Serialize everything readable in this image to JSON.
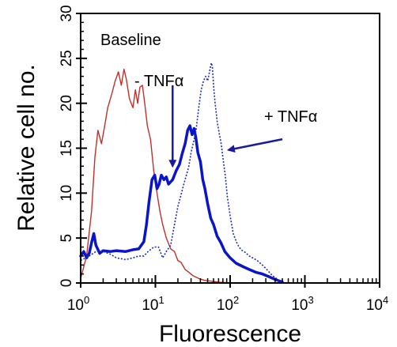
{
  "chart_data": {
    "type": "line",
    "xlabel": "Fluorescence",
    "ylabel": "Relative cell no.",
    "x_scale": "log",
    "xlim": [
      1,
      10000
    ],
    "ylim": [
      0,
      30
    ],
    "grid": false,
    "x_ticks": [
      {
        "value": 1,
        "base": "10",
        "exp": "0"
      },
      {
        "value": 10,
        "base": "10",
        "exp": "1"
      },
      {
        "value": 100,
        "base": "10",
        "exp": "2"
      },
      {
        "value": 1000,
        "base": "10",
        "exp": "3"
      },
      {
        "value": 10000,
        "base": "10",
        "exp": "4"
      }
    ],
    "y_ticks": [
      {
        "value": 0,
        "label": "0"
      },
      {
        "value": 5,
        "label": "5"
      },
      {
        "value": 10,
        "label": "10"
      },
      {
        "value": 15,
        "label": "15"
      },
      {
        "value": 20,
        "label": "20"
      },
      {
        "value": 25,
        "label": "25"
      },
      {
        "value": 30,
        "label": "30"
      }
    ],
    "annotations": {
      "baseline": "Baseline",
      "minus_tnf": "- TNFα",
      "plus_tnf": "+ TNFα"
    },
    "arrows": [
      {
        "name": "minus-tnf-arrow",
        "from": [
          17,
          22
        ],
        "to": [
          17,
          13
        ],
        "color": "#1a1a9c"
      },
      {
        "name": "plus-tnf-arrow",
        "from": [
          500,
          16
        ],
        "to": [
          95,
          14.8
        ],
        "color": "#1a1a9c"
      }
    ],
    "series": [
      {
        "color": "#c0302a",
        "style": "solid",
        "width": 1.4,
        "points": [
          [
            1,
            0.5
          ],
          [
            1.2,
            3
          ],
          [
            1.4,
            8
          ],
          [
            1.55,
            14
          ],
          [
            1.7,
            17
          ],
          [
            1.9,
            15.5
          ],
          [
            2.1,
            17.5
          ],
          [
            2.3,
            19.5
          ],
          [
            2.6,
            21
          ],
          [
            2.9,
            22.5
          ],
          [
            3.2,
            23.5
          ],
          [
            3.5,
            22
          ],
          [
            3.8,
            23.8
          ],
          [
            4.1,
            22.6
          ],
          [
            4.5,
            20.5
          ],
          [
            5,
            19.5
          ],
          [
            5.4,
            21.5
          ],
          [
            5.8,
            20
          ],
          [
            6.2,
            21.8
          ],
          [
            6.7,
            22
          ],
          [
            7.2,
            20
          ],
          [
            7.8,
            17.5
          ],
          [
            8.6,
            16
          ],
          [
            9.5,
            12.5
          ],
          [
            10.5,
            10
          ],
          [
            11.5,
            8
          ],
          [
            12.5,
            6.5
          ],
          [
            14,
            5
          ],
          [
            16,
            3.8
          ],
          [
            18,
            3.5
          ],
          [
            20,
            2.5
          ],
          [
            22,
            2.3
          ],
          [
            25,
            1.5
          ],
          [
            28,
            1.2
          ],
          [
            32,
            0.8
          ],
          [
            38,
            0.5
          ],
          [
            45,
            0.3
          ],
          [
            55,
            0.2
          ],
          [
            70,
            0.1
          ],
          [
            100,
            0
          ],
          [
            150,
            0
          ],
          [
            250,
            0
          ],
          [
            400,
            0
          ]
        ]
      },
      {
        "color": "#0a14c8",
        "style": "solid",
        "width": 3.5,
        "points": [
          [
            1,
            3
          ],
          [
            1.1,
            3.5
          ],
          [
            1.2,
            2.8
          ],
          [
            1.3,
            3.3
          ],
          [
            1.4,
            4.5
          ],
          [
            1.5,
            5.5
          ],
          [
            1.6,
            4.2
          ],
          [
            1.8,
            3.3
          ],
          [
            2,
            3.6
          ],
          [
            2.5,
            3.5
          ],
          [
            3,
            3.6
          ],
          [
            4,
            3.5
          ],
          [
            5,
            3.7
          ],
          [
            6,
            3.8
          ],
          [
            7,
            4.6
          ],
          [
            7.6,
            6.5
          ],
          [
            8.2,
            9
          ],
          [
            9,
            11.5
          ],
          [
            9.8,
            12
          ],
          [
            10.5,
            10.5
          ],
          [
            11.2,
            11
          ],
          [
            12,
            12
          ],
          [
            13,
            11.5
          ],
          [
            14,
            11.8
          ],
          [
            15,
            11
          ],
          [
            17,
            11.5
          ],
          [
            19,
            12.5
          ],
          [
            21,
            13.2
          ],
          [
            23,
            14.5
          ],
          [
            25,
            15.5
          ],
          [
            27,
            17
          ],
          [
            29,
            17.5
          ],
          [
            31,
            16.5
          ],
          [
            33,
            17.2
          ],
          [
            35,
            16
          ],
          [
            37,
            14.5
          ],
          [
            40,
            13.5
          ],
          [
            43,
            11.5
          ],
          [
            46,
            10.5
          ],
          [
            50,
            8.8
          ],
          [
            55,
            7.2
          ],
          [
            60,
            6.5
          ],
          [
            67,
            5.2
          ],
          [
            75,
            4.5
          ],
          [
            85,
            3.5
          ],
          [
            100,
            2.8
          ],
          [
            120,
            2.2
          ],
          [
            150,
            1.8
          ],
          [
            180,
            1.5
          ],
          [
            220,
            1.2
          ],
          [
            270,
            1
          ],
          [
            330,
            0.7
          ],
          [
            400,
            0.4
          ],
          [
            500,
            0.1
          ]
        ]
      },
      {
        "color": "#1c2ab8",
        "style": "dotted",
        "width": 1.6,
        "points": [
          [
            1,
            2.5
          ],
          [
            1.3,
            3
          ],
          [
            1.6,
            3.5
          ],
          [
            2,
            3.5
          ],
          [
            2.5,
            3.2
          ],
          [
            3,
            2.8
          ],
          [
            4,
            2.6
          ],
          [
            5,
            2.8
          ],
          [
            6,
            3
          ],
          [
            7,
            3
          ],
          [
            8,
            3.5
          ],
          [
            9.5,
            4
          ],
          [
            11,
            4
          ],
          [
            12.5,
            2.8
          ],
          [
            14,
            3.5
          ],
          [
            16,
            4.2
          ],
          [
            18,
            6.5
          ],
          [
            20,
            8.5
          ],
          [
            22,
            9.8
          ],
          [
            24,
            11
          ],
          [
            26,
            12
          ],
          [
            28,
            13
          ],
          [
            30,
            14.5
          ],
          [
            33,
            16
          ],
          [
            35,
            17
          ],
          [
            38,
            19.5
          ],
          [
            41,
            21.5
          ],
          [
            44,
            22.5
          ],
          [
            47,
            23
          ],
          [
            50,
            22.5
          ],
          [
            53,
            23.5
          ],
          [
            56,
            24.5
          ],
          [
            58,
            24
          ],
          [
            60,
            22
          ],
          [
            63,
            20
          ],
          [
            67,
            18
          ],
          [
            72,
            16.5
          ],
          [
            76,
            15.5
          ],
          [
            80,
            14
          ],
          [
            86,
            12
          ],
          [
            92,
            9.5
          ],
          [
            100,
            7.5
          ],
          [
            110,
            5.5
          ],
          [
            125,
            4.3
          ],
          [
            140,
            3.7
          ],
          [
            160,
            3.4
          ],
          [
            180,
            3
          ],
          [
            200,
            2.8
          ],
          [
            230,
            2.5
          ],
          [
            270,
            2
          ],
          [
            310,
            1.5
          ],
          [
            350,
            1
          ],
          [
            400,
            0.6
          ],
          [
            450,
            0.3
          ],
          [
            500,
            0.1
          ]
        ]
      }
    ]
  }
}
